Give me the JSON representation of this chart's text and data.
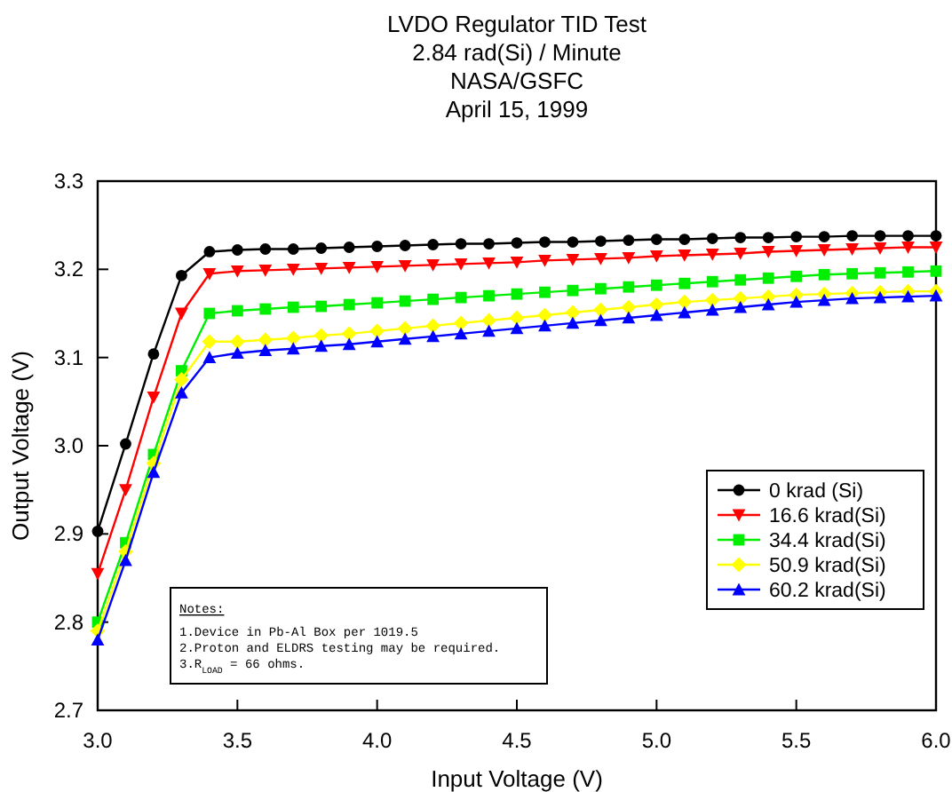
{
  "chart_data": {
    "type": "line",
    "title": "LVDO Regulator TID Test",
    "subtitle": "2.84 rad(Si) / Minute\nNASA/GSFC\nApril 15, 1999",
    "xlabel": "Input Voltage (V)",
    "ylabel": "Output Voltage (V)",
    "x": [
      3.0,
      3.1,
      3.2,
      3.3,
      3.4,
      3.5,
      3.6,
      3.7,
      3.8,
      3.9,
      4.0,
      4.1,
      4.2,
      4.3,
      4.4,
      4.5,
      4.6,
      4.7,
      4.8,
      4.9,
      5.0,
      5.1,
      5.2,
      5.3,
      5.4,
      5.5,
      5.6,
      5.7,
      5.8,
      5.9,
      6.0
    ],
    "series": [
      {
        "name": "0 krad (Si)",
        "color": "#000000",
        "marker": "circle",
        "values": [
          2.903,
          3.002,
          3.104,
          3.193,
          3.22,
          3.222,
          3.223,
          3.223,
          3.224,
          3.225,
          3.226,
          3.227,
          3.228,
          3.229,
          3.229,
          3.23,
          3.231,
          3.231,
          3.232,
          3.233,
          3.234,
          3.234,
          3.235,
          3.236,
          3.236,
          3.237,
          3.237,
          3.238,
          3.238,
          3.238,
          3.238
        ]
      },
      {
        "name": "16.6 krad(Si)",
        "color": "#ff0000",
        "marker": "triangle-down",
        "values": [
          2.855,
          2.95,
          3.055,
          3.15,
          3.195,
          3.198,
          3.199,
          3.2,
          3.201,
          3.202,
          3.203,
          3.204,
          3.205,
          3.206,
          3.207,
          3.208,
          3.21,
          3.211,
          3.212,
          3.213,
          3.215,
          3.216,
          3.217,
          3.218,
          3.22,
          3.221,
          3.222,
          3.223,
          3.224,
          3.225,
          3.225
        ]
      },
      {
        "name": "34.4 krad(Si)",
        "color": "#00ee00",
        "marker": "square",
        "values": [
          2.8,
          2.89,
          2.99,
          3.085,
          3.15,
          3.153,
          3.155,
          3.157,
          3.158,
          3.16,
          3.162,
          3.164,
          3.166,
          3.168,
          3.17,
          3.172,
          3.174,
          3.176,
          3.178,
          3.18,
          3.182,
          3.184,
          3.186,
          3.188,
          3.19,
          3.192,
          3.194,
          3.195,
          3.196,
          3.197,
          3.198
        ]
      },
      {
        "name": "50.9 krad(Si)",
        "color": "#ffff00",
        "marker": "diamond",
        "values": [
          2.79,
          2.88,
          2.98,
          3.075,
          3.118,
          3.118,
          3.12,
          3.122,
          3.125,
          3.127,
          3.13,
          3.133,
          3.136,
          3.139,
          3.142,
          3.145,
          3.148,
          3.151,
          3.154,
          3.157,
          3.16,
          3.163,
          3.165,
          3.167,
          3.169,
          3.171,
          3.172,
          3.173,
          3.174,
          3.175,
          3.175
        ]
      },
      {
        "name": "60.2 krad(Si)",
        "color": "#0000ff",
        "marker": "triangle",
        "values": [
          2.78,
          2.87,
          2.97,
          3.06,
          3.1,
          3.105,
          3.108,
          3.11,
          3.113,
          3.115,
          3.118,
          3.121,
          3.124,
          3.127,
          3.13,
          3.133,
          3.136,
          3.139,
          3.142,
          3.145,
          3.148,
          3.151,
          3.154,
          3.157,
          3.16,
          3.163,
          3.165,
          3.167,
          3.168,
          3.169,
          3.17
        ]
      }
    ],
    "xlim": [
      3.0,
      6.0
    ],
    "xticks": [
      {
        "value": 3,
        "label": "3.0"
      },
      3.5,
      {
        "value": 4,
        "label": "4.0"
      },
      4.5,
      {
        "value": 5,
        "label": "5.0"
      },
      5.5,
      {
        "value": 6,
        "label": "6.0"
      }
    ],
    "ylim": [
      2.7,
      3.3
    ],
    "yticks": [
      2.7,
      2.8,
      2.9,
      {
        "value": 3,
        "label": "3.0"
      },
      3.1,
      3.2,
      3.3
    ],
    "grid": false,
    "legend": "bottom right",
    "line_style": "solid",
    "annotations": [
      "Notes:",
      "1.Device in Pb-Al Box per 1019.5",
      "2.Proton and ELDRS testing may be required.",
      "3.R$_{LOAD}$ = 66 ohms."
    ]
  }
}
